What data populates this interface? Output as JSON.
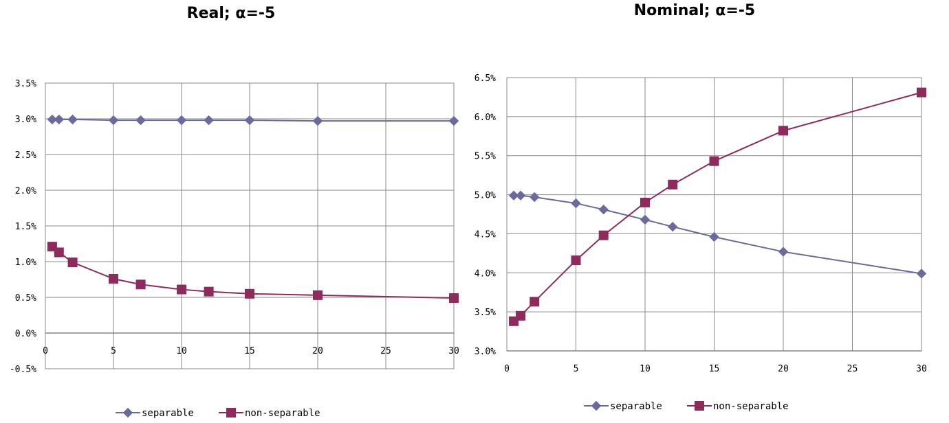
{
  "chart_data": [
    {
      "type": "line",
      "title": "Real; α=-5",
      "xlabel": "",
      "ylabel": "",
      "xlim": [
        0,
        30
      ],
      "ylim": [
        -0.5,
        3.5
      ],
      "xticks": [
        0,
        5,
        10,
        15,
        20,
        25,
        30
      ],
      "yticks": [
        -0.5,
        0.0,
        0.5,
        1.0,
        1.5,
        2.0,
        2.5,
        3.0,
        3.5
      ],
      "ytick_labels": [
        "-0.5%",
        "0.0%",
        "0.5%",
        "1.0%",
        "1.5%",
        "2.0%",
        "2.5%",
        "3.0%",
        "3.5%"
      ],
      "grid": true,
      "legend_position": "bottom",
      "series": [
        {
          "name": "separable",
          "marker": "diamond",
          "color": "#6A6A9E",
          "x": [
            0.5,
            1,
            2,
            5,
            7,
            10,
            12,
            15,
            20,
            30
          ],
          "values": [
            2.99,
            2.99,
            2.99,
            2.98,
            2.98,
            2.98,
            2.98,
            2.98,
            2.97,
            2.97
          ]
        },
        {
          "name": "non-separable",
          "marker": "square",
          "color": "#8E2A5C",
          "x": [
            0.5,
            1,
            2,
            5,
            7,
            10,
            12,
            15,
            20,
            30
          ],
          "values": [
            1.21,
            1.13,
            0.99,
            0.76,
            0.68,
            0.61,
            0.58,
            0.55,
            0.53,
            0.49
          ]
        }
      ]
    },
    {
      "type": "line",
      "title": "Nominal; α=-5",
      "xlabel": "",
      "ylabel": "",
      "xlim": [
        0,
        30
      ],
      "ylim": [
        3.0,
        6.5
      ],
      "xticks": [
        0,
        5,
        10,
        15,
        20,
        25,
        30
      ],
      "yticks": [
        3.0,
        3.5,
        4.0,
        4.5,
        5.0,
        5.5,
        6.0,
        6.5
      ],
      "ytick_labels": [
        "3.0%",
        "3.5%",
        "4.0%",
        "4.5%",
        "5.0%",
        "5.5%",
        "6.0%",
        "6.5%"
      ],
      "grid": true,
      "legend_position": "bottom",
      "series": [
        {
          "name": "separable",
          "marker": "diamond",
          "color": "#6A6A9E",
          "x": [
            0.5,
            1,
            2,
            5,
            7,
            10,
            12,
            15,
            20,
            30
          ],
          "values": [
            4.99,
            4.99,
            4.97,
            4.89,
            4.81,
            4.68,
            4.59,
            4.46,
            4.27,
            3.99
          ]
        },
        {
          "name": "non-separable",
          "marker": "square",
          "color": "#8E2A5C",
          "x": [
            0.5,
            1,
            2,
            5,
            7,
            10,
            12,
            15,
            20,
            30
          ],
          "values": [
            3.38,
            3.45,
            3.63,
            4.16,
            4.48,
            4.9,
            5.13,
            5.43,
            5.82,
            6.31
          ]
        }
      ]
    }
  ]
}
